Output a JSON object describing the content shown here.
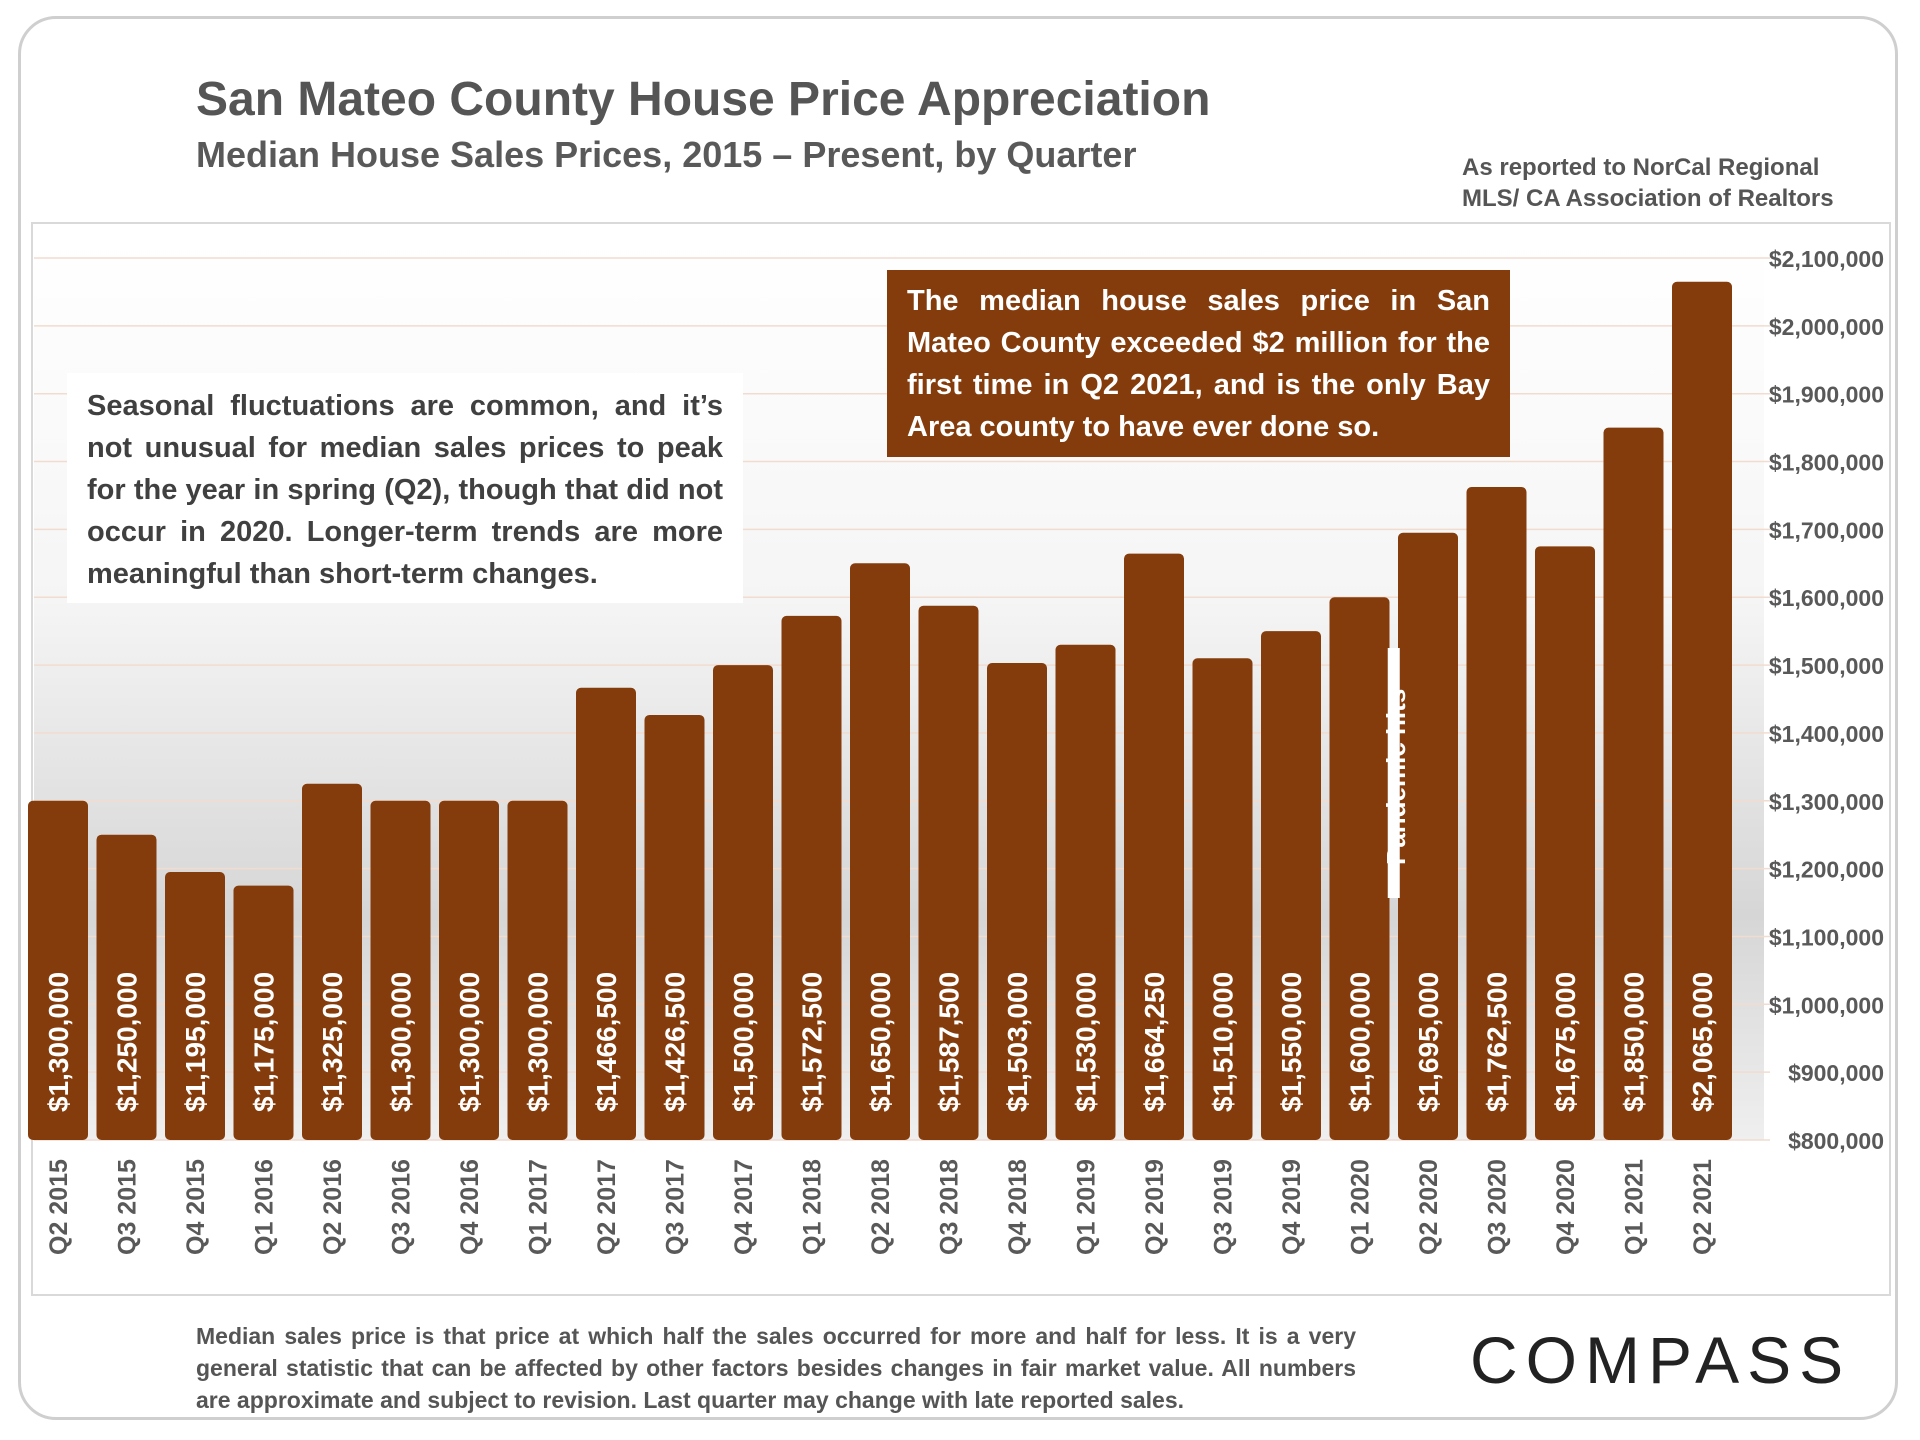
{
  "title": "San Mateo County House Price Appreciation",
  "subtitle": "Median House Sales Prices, 2015 – Present, by Quarter",
  "source_line1": "As reported to NorCal Regional",
  "source_line2": "MLS/ CA Association of Realtors",
  "note_left": "Seasonal fluctuations are common, and it’s not unusual for median sales prices to peak for the year in spring (Q2), though that did not occur in 2020. Longer-term trends are more meaningful than short-term changes.",
  "note_right": "The median house sales price in San Mateo County exceeded $2 million for the first time in Q2 2021, and is the only Bay Area county to have ever done so.",
  "footnote": "Median sales price is that price at which half the sales occurred for more and half for less. It is a very general statistic that can be affected by other factors besides changes in fair market value. All numbers are approximate and subject to revision. Last quarter may change with late reported sales.",
  "logo": "COMPASS",
  "colors": {
    "bar": "#843c0c",
    "axis_text": "#595959",
    "grid": "#f2dccf",
    "title": "#555555"
  },
  "chart_data": {
    "type": "bar",
    "title": "San Mateo County House Price Appreciation",
    "categories": [
      "Q2 2015",
      "Q3 2015",
      "Q4 2015",
      "Q1 2016",
      "Q2 2016",
      "Q3 2016",
      "Q4 2016",
      "Q1 2017",
      "Q2 2017",
      "Q3 2017",
      "Q4 2017",
      "Q1 2018",
      "Q2 2018",
      "Q3 2018",
      "Q4 2018",
      "Q1 2019",
      "Q2 2019",
      "Q3 2019",
      "Q4 2019",
      "Q1 2020",
      "Q2 2020",
      "Q3 2020",
      "Q4 2020",
      "Q1 2021",
      "Q2 2021"
    ],
    "values": [
      1300000,
      1250000,
      1195000,
      1175000,
      1325000,
      1300000,
      1300000,
      1300000,
      1466500,
      1426500,
      1500000,
      1572500,
      1650000,
      1587500,
      1503000,
      1530000,
      1664250,
      1510000,
      1550000,
      1600000,
      1695000,
      1762500,
      1675000,
      1850000,
      2065000
    ],
    "value_labels": [
      "$1,300,000",
      "$1,250,000",
      "$1,195,000",
      "$1,175,000",
      "$1,325,000",
      "$1,300,000",
      "$1,300,000",
      "$1,300,000",
      "$1,466,500",
      "$1,426,500",
      "$1,500,000",
      "$1,572,500",
      "$1,650,000",
      "$1,587,500",
      "$1,503,000",
      "$1,530,000",
      "$1,664,250",
      "$1,510,000",
      "$1,550,000",
      "$1,600,000",
      "$1,695,000",
      "$1,762,500",
      "$1,675,000",
      "$1,850,000",
      "$2,065,000"
    ],
    "ylim": [
      800000,
      2100000
    ],
    "yticks": [
      800000,
      900000,
      1000000,
      1100000,
      1200000,
      1300000,
      1400000,
      1500000,
      1600000,
      1700000,
      1800000,
      1900000,
      2000000,
      2100000
    ],
    "ytick_labels": [
      "$800,000",
      "$900,000",
      "$1,000,000",
      "$1,100,000",
      "$1,200,000",
      "$1,300,000",
      "$1,400,000",
      "$1,500,000",
      "$1,600,000",
      "$1,700,000",
      "$1,800,000",
      "$1,900,000",
      "$2,000,000",
      "$2,100,000"
    ],
    "yaxis_position": "right",
    "grid": true,
    "annotation": {
      "text": "Pandemic hits",
      "after_category": "Q1 2020"
    },
    "xlabel": "",
    "ylabel": ""
  }
}
